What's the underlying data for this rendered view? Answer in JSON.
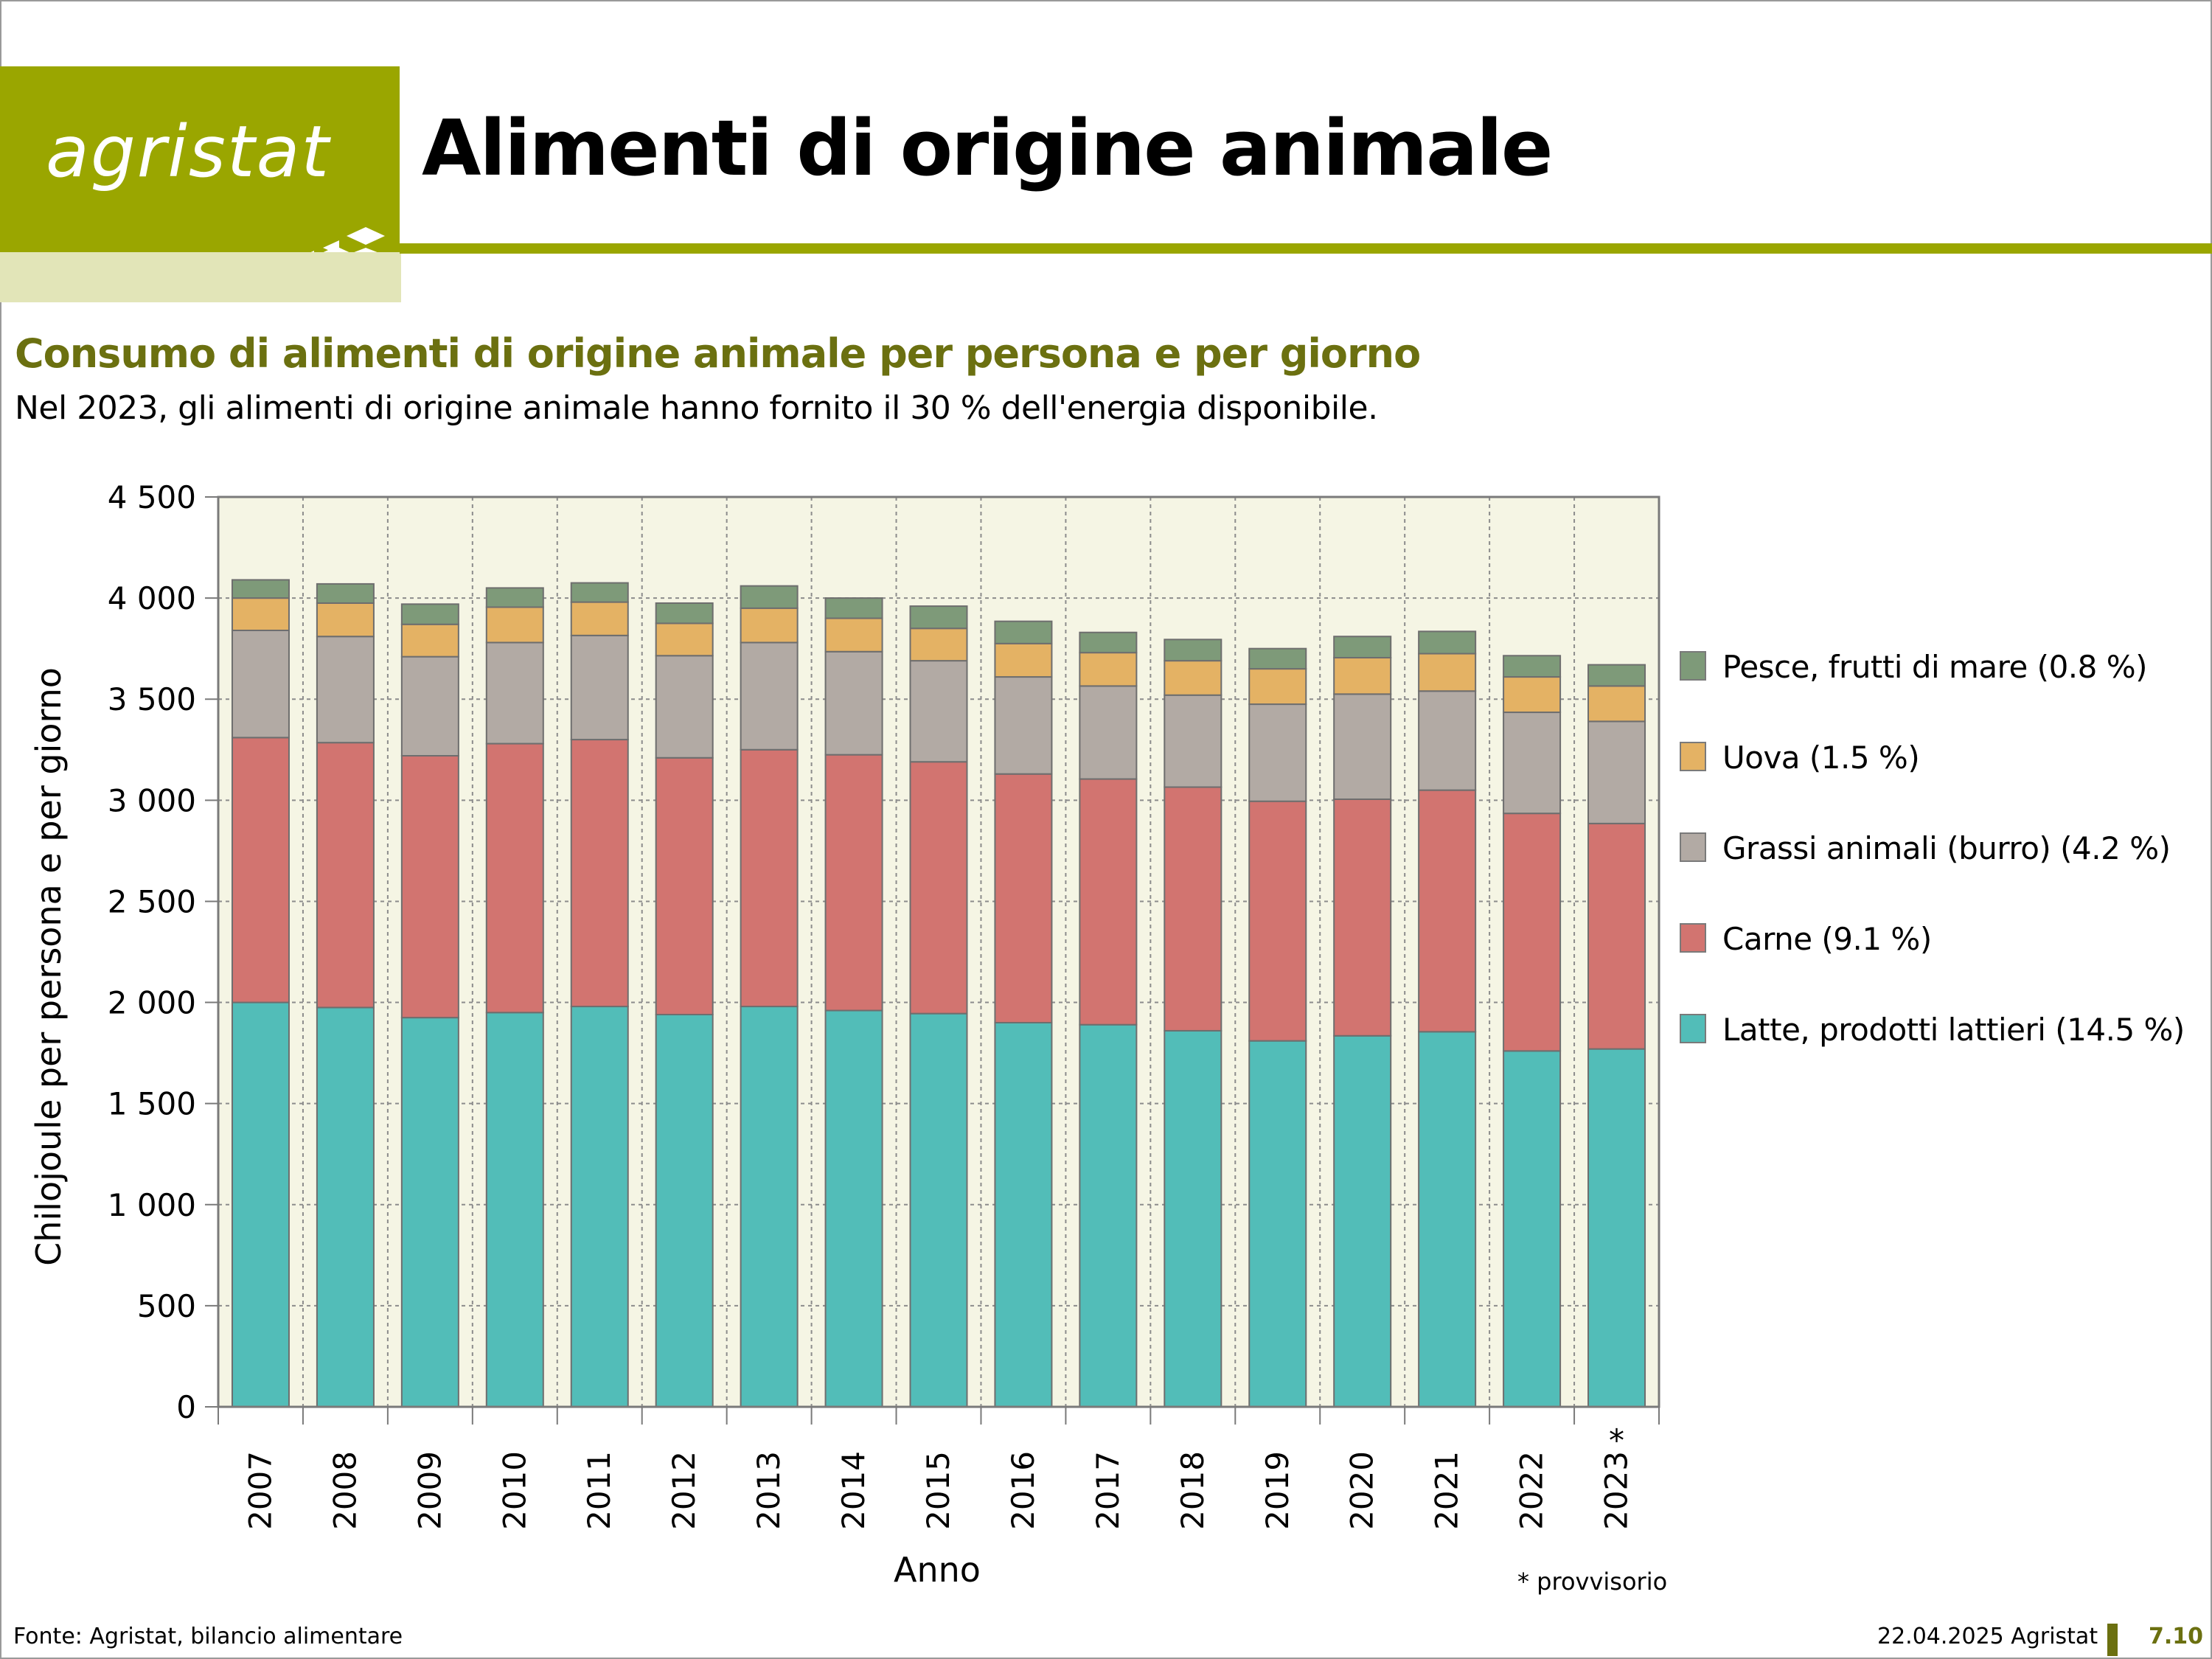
{
  "header": {
    "logo_text": "agristat",
    "title": "Alimenti di origine animale"
  },
  "subtitle": "Consumo di alimenti di origine animale per persona e per giorno",
  "note": "Nel 2023, gli alimenti di origine animale hanno fornito il 30 % dell'energia disponibile.",
  "footnote": "* provvisorio",
  "footer": {
    "source": "Fonte: Agristat, bilancio alimentare",
    "date": "22.04.2025 Agristat",
    "page": "7.10"
  },
  "colors": {
    "brand": "#9aa600",
    "brand_dark": "#6b7010",
    "plot_bg": "#f5f5e4"
  },
  "chart_data": {
    "type": "bar",
    "stacked": true,
    "title": "",
    "xlabel": "Anno",
    "ylabel": "Chilojoule per persona e per giorno",
    "ylim": [
      0,
      4500
    ],
    "yticks": [
      0,
      500,
      1000,
      1500,
      2000,
      2500,
      3000,
      3500,
      4000,
      4500
    ],
    "ytick_labels": [
      "0",
      "500",
      "1 000",
      "1 500",
      "2 000",
      "2 500",
      "3 000",
      "3 500",
      "4 000",
      "4 500"
    ],
    "grid": true,
    "legend_position": "right",
    "categories": [
      "2007",
      "2008",
      "2009",
      "2010",
      "2011",
      "2012",
      "2013",
      "2014",
      "2015",
      "2016",
      "2017",
      "2018",
      "2019",
      "2020",
      "2021",
      "2022",
      "2023"
    ],
    "category_marks": [
      "",
      "",
      "",
      "",
      "",
      "",
      "",
      "",
      "",
      "",
      "",
      "",
      "",
      "",
      "",
      "",
      "*"
    ],
    "series": [
      {
        "name": "Latte, prodotti lattieri (14.5 %)",
        "color": "#52bdb8",
        "values": [
          2000,
          1975,
          1925,
          1950,
          1980,
          1940,
          1980,
          1960,
          1945,
          1900,
          1890,
          1860,
          1810,
          1835,
          1855,
          1760,
          1770
        ]
      },
      {
        "name": "Carne (9.1 %)",
        "color": "#d27470",
        "values": [
          1310,
          1310,
          1295,
          1330,
          1320,
          1270,
          1270,
          1265,
          1245,
          1230,
          1215,
          1205,
          1185,
          1170,
          1195,
          1175,
          1115
        ]
      },
      {
        "name": "Grassi animali (burro) (4.2 %)",
        "color": "#b2aaa4",
        "values": [
          530,
          525,
          490,
          500,
          515,
          505,
          530,
          510,
          500,
          480,
          460,
          455,
          480,
          520,
          490,
          500,
          505
        ]
      },
      {
        "name": "Uova (1.5 %)",
        "color": "#e4b264",
        "values": [
          160,
          165,
          160,
          175,
          165,
          160,
          170,
          165,
          160,
          165,
          165,
          170,
          175,
          180,
          185,
          175,
          175
        ]
      },
      {
        "name": "Pesce, frutti di mare (0.8 %)",
        "color": "#7e9a79",
        "values": [
          90,
          95,
          100,
          95,
          95,
          100,
          110,
          100,
          110,
          110,
          100,
          105,
          100,
          105,
          110,
          105,
          105
        ]
      }
    ]
  }
}
